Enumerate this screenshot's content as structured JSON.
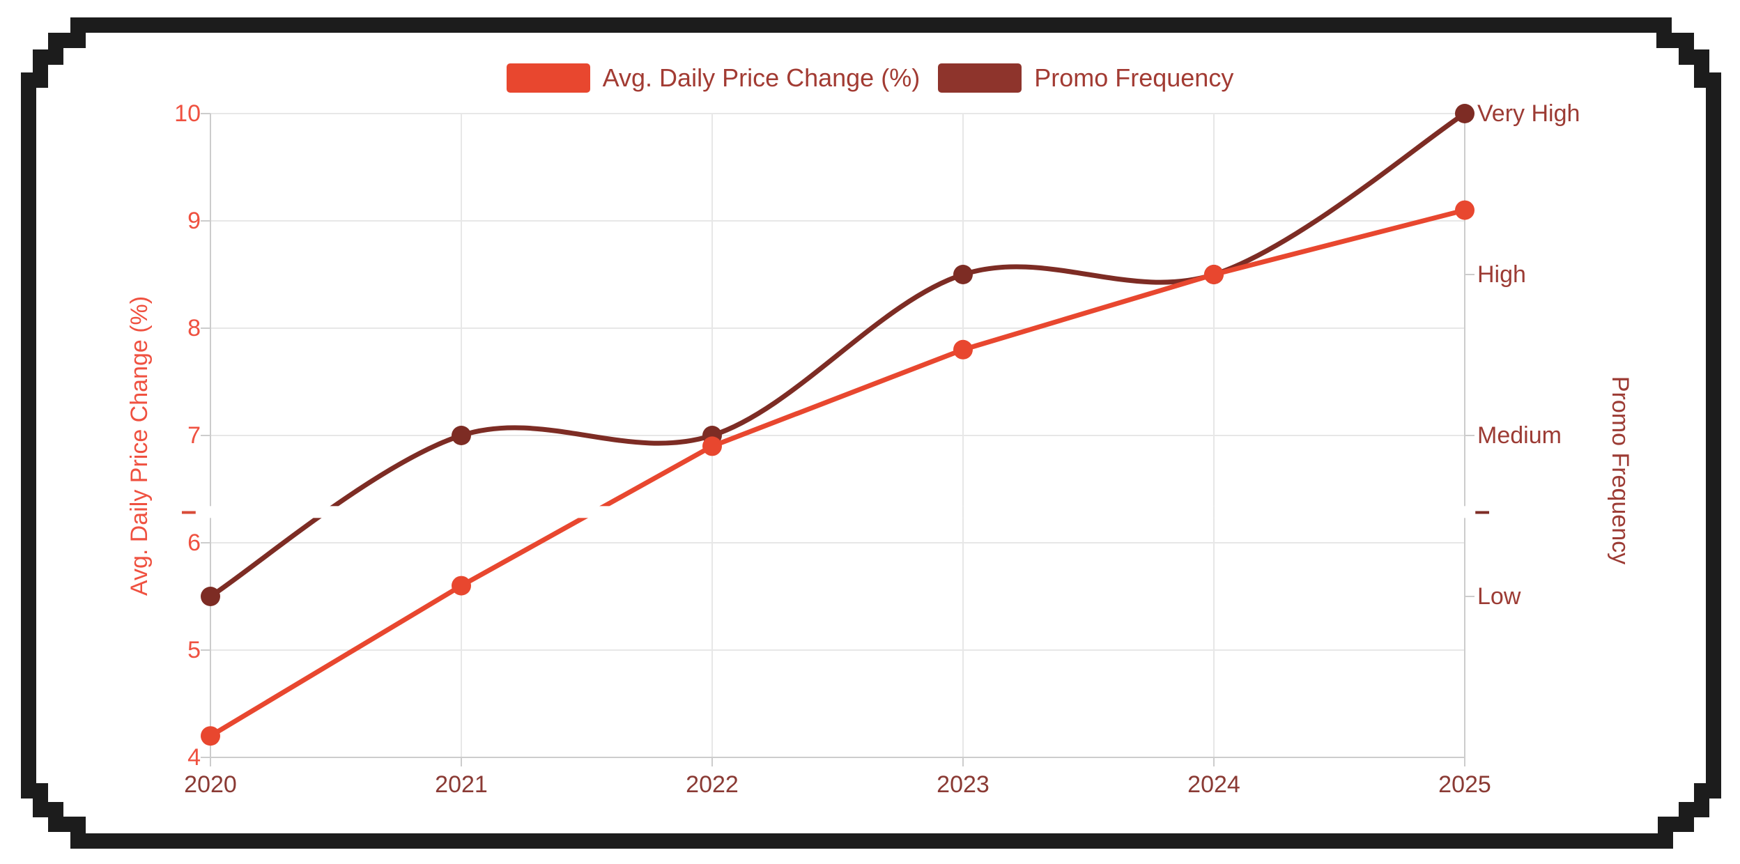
{
  "legend": {
    "items": [
      {
        "label": "Avg. Daily Price Change (%)",
        "color": "#e8472f"
      },
      {
        "label": "Promo Frequency",
        "color": "#8e342c"
      }
    ],
    "text_color": "#a23b33"
  },
  "chart_data": {
    "type": "line",
    "x": [
      "2020",
      "2021",
      "2022",
      "2023",
      "2024",
      "2025"
    ],
    "series": [
      {
        "name": "Avg. Daily Price Change (%)",
        "yAxis": "left",
        "color": "#e8472f",
        "smooth": false,
        "point_radius": 14,
        "values": [
          4.2,
          5.6,
          6.9,
          7.8,
          8.5,
          9.1
        ]
      },
      {
        "name": "Promo Frequency",
        "yAxis": "right",
        "color": "#7d2c24",
        "smooth": true,
        "point_radius": 14,
        "values": [
          "Low",
          "Medium",
          "Medium",
          "High",
          "High",
          "Very High"
        ]
      }
    ],
    "left_axis": {
      "title": "Avg. Daily Price Change (%)",
      "range": [
        4,
        10
      ],
      "ticks": [
        "10",
        "9",
        "8",
        "7",
        "6",
        "5",
        "4"
      ],
      "tick_values": [
        10,
        9,
        8,
        7,
        6,
        5,
        4
      ],
      "color": "#ef5140"
    },
    "right_axis": {
      "title": "Promo Frequency",
      "ticks": [
        "Very High",
        "High",
        "Medium",
        "Low"
      ],
      "tick_values": [
        10,
        8.5,
        7,
        5.5
      ],
      "category_map": {
        "Low": 5.5,
        "Medium": 7.0,
        "High": 8.5,
        "Very High": 10.0
      },
      "color": "#9c3b34"
    },
    "x_axis": {
      "ticks": [
        "2020",
        "2021",
        "2022",
        "2023",
        "2024",
        "2025"
      ],
      "color": "#8a3a34"
    },
    "grid": {
      "show": true,
      "color": "#e7e7e7",
      "axis_line_color": "#cccccc"
    },
    "legend_position": "top"
  },
  "artifacts": {
    "band_value": 6.29,
    "left_dash": "–",
    "left_dash_color": "#d84b38",
    "right_dash": "–",
    "right_dash_color": "#7e2d26"
  },
  "frame": {
    "border_color": "#1c1c1c"
  }
}
